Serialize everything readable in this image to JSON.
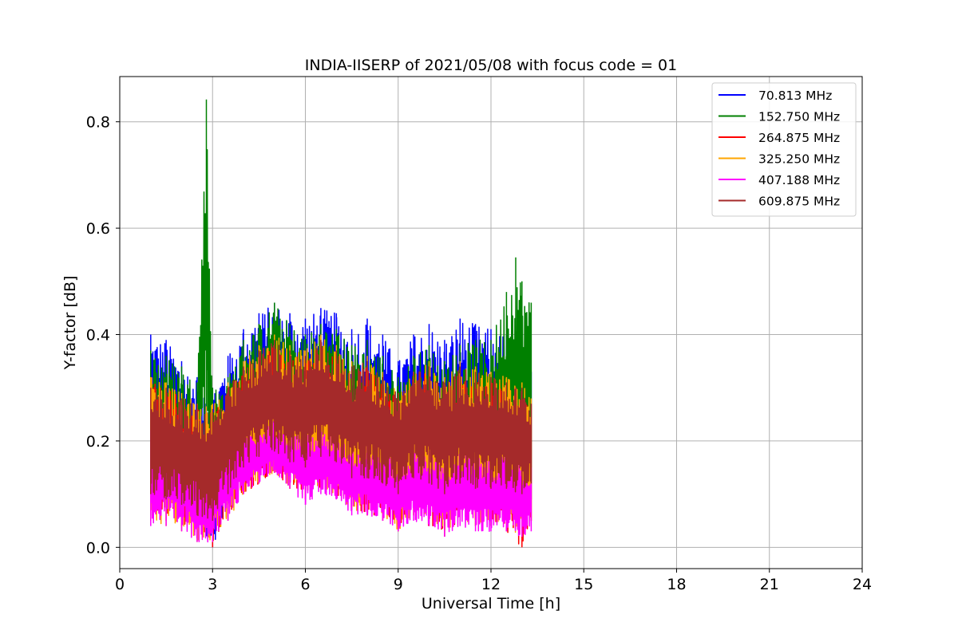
{
  "chart_data": {
    "type": "line",
    "title": "INDIA-IISERP of 2021/05/08 with focus code = 01",
    "xlabel": "Universal Time [h]",
    "ylabel": "Y-factor [dB]",
    "xlim": [
      0,
      24
    ],
    "ylim": [
      -0.04,
      0.885
    ],
    "xticks": [
      0,
      3,
      6,
      9,
      12,
      15,
      18,
      21,
      24
    ],
    "xtick_labels": [
      "0",
      "3",
      "6",
      "9",
      "12",
      "15",
      "18",
      "21",
      "24"
    ],
    "yticks": [
      0.0,
      0.2,
      0.4,
      0.6,
      0.8
    ],
    "ytick_labels": [
      "0.0",
      "0.2",
      "0.4",
      "0.6",
      "0.8"
    ],
    "grid": true,
    "legend_position": "top-right",
    "x_range_of_data": [
      1.0,
      13.3
    ],
    "series": [
      {
        "name": " 70.813 MHz",
        "color": "#0000ff",
        "x": [
          1.0,
          1.5,
          2.0,
          2.5,
          3.0,
          3.5,
          4.0,
          4.5,
          5.0,
          5.5,
          6.0,
          6.5,
          7.0,
          7.5,
          8.0,
          8.5,
          9.0,
          9.5,
          10.0,
          10.5,
          11.0,
          11.5,
          12.0,
          12.5,
          13.0,
          13.3
        ],
        "upper": [
          0.4,
          0.39,
          0.35,
          0.32,
          0.3,
          0.36,
          0.41,
          0.44,
          0.46,
          0.44,
          0.43,
          0.45,
          0.44,
          0.41,
          0.43,
          0.4,
          0.35,
          0.4,
          0.42,
          0.39,
          0.43,
          0.42,
          0.41,
          0.4,
          0.38,
          0.33
        ],
        "lower": [
          0.1,
          0.09,
          0.07,
          0.04,
          0.0,
          0.08,
          0.14,
          0.16,
          0.18,
          0.15,
          0.13,
          0.15,
          0.14,
          0.11,
          0.1,
          0.08,
          0.05,
          0.09,
          0.07,
          0.04,
          0.08,
          0.07,
          0.08,
          0.07,
          0.06,
          0.09
        ]
      },
      {
        "name": "152.750 MHz",
        "color": "#008000",
        "x": [
          1.0,
          1.5,
          2.0,
          2.5,
          2.8,
          3.0,
          3.5,
          4.0,
          4.5,
          5.0,
          5.5,
          6.0,
          6.5,
          7.0,
          7.5,
          8.0,
          8.5,
          9.0,
          9.5,
          10.0,
          10.5,
          11.0,
          11.5,
          12.0,
          12.5,
          12.8,
          13.0,
          13.3
        ],
        "upper": [
          0.37,
          0.36,
          0.34,
          0.31,
          0.842,
          0.3,
          0.32,
          0.39,
          0.42,
          0.46,
          0.42,
          0.4,
          0.42,
          0.41,
          0.38,
          0.39,
          0.36,
          0.32,
          0.36,
          0.38,
          0.35,
          0.38,
          0.39,
          0.39,
          0.48,
          0.545,
          0.5,
          0.46
        ],
        "lower": [
          0.12,
          0.11,
          0.09,
          0.05,
          0.2,
          0.03,
          0.09,
          0.15,
          0.17,
          0.19,
          0.16,
          0.14,
          0.16,
          0.15,
          0.12,
          0.11,
          0.09,
          0.06,
          0.1,
          0.08,
          0.05,
          0.09,
          0.08,
          0.09,
          0.08,
          0.1,
          0.12,
          0.15
        ]
      },
      {
        "name": "264.875 MHz",
        "color": "#ff0000",
        "x": [
          1.0,
          1.5,
          2.0,
          2.5,
          3.0,
          3.5,
          4.0,
          4.5,
          5.0,
          5.5,
          6.0,
          6.5,
          7.0,
          7.5,
          8.0,
          8.5,
          9.0,
          9.5,
          10.0,
          10.5,
          11.0,
          11.5,
          12.0,
          12.5,
          13.0,
          13.3
        ],
        "upper": [
          0.31,
          0.3,
          0.28,
          0.26,
          0.25,
          0.29,
          0.33,
          0.36,
          0.38,
          0.36,
          0.35,
          0.37,
          0.36,
          0.33,
          0.34,
          0.32,
          0.28,
          0.32,
          0.33,
          0.3,
          0.33,
          0.32,
          0.31,
          0.31,
          0.3,
          0.27
        ],
        "lower": [
          0.06,
          0.05,
          0.04,
          0.02,
          0.0,
          0.05,
          0.1,
          0.12,
          0.14,
          0.11,
          0.09,
          0.11,
          0.1,
          0.07,
          0.06,
          0.05,
          0.03,
          0.06,
          0.04,
          0.02,
          0.05,
          0.04,
          0.04,
          0.03,
          0.0,
          0.05
        ]
      },
      {
        "name": "325.250 MHz",
        "color": "#ffa500",
        "x": [
          1.0,
          1.5,
          2.0,
          2.5,
          3.0,
          3.5,
          4.0,
          4.5,
          5.0,
          5.5,
          6.0,
          6.5,
          7.0,
          7.5,
          8.0,
          8.5,
          9.0,
          9.5,
          10.0,
          10.5,
          11.0,
          11.5,
          12.0,
          12.5,
          13.0,
          13.3
        ],
        "upper": [
          0.32,
          0.31,
          0.29,
          0.27,
          0.27,
          0.31,
          0.35,
          0.38,
          0.4,
          0.38,
          0.37,
          0.4,
          0.38,
          0.35,
          0.36,
          0.33,
          0.29,
          0.33,
          0.35,
          0.32,
          0.35,
          0.34,
          0.33,
          0.32,
          0.31,
          0.28
        ],
        "lower": [
          0.05,
          0.04,
          0.03,
          0.01,
          0.01,
          0.05,
          0.1,
          0.12,
          0.14,
          0.11,
          0.1,
          0.11,
          0.1,
          0.07,
          0.06,
          0.05,
          0.03,
          0.06,
          0.05,
          0.03,
          0.05,
          0.04,
          0.05,
          0.04,
          0.02,
          0.05
        ]
      },
      {
        "name": "407.188 MHz",
        "color": "#ff00ff",
        "x": [
          1.0,
          1.5,
          2.0,
          2.5,
          3.0,
          3.5,
          4.0,
          4.5,
          5.0,
          5.5,
          6.0,
          6.5,
          7.0,
          7.5,
          8.0,
          8.5,
          9.0,
          9.5,
          10.0,
          10.5,
          11.0,
          11.5,
          12.0,
          12.5,
          13.0,
          13.3
        ],
        "upper": [
          0.22,
          0.21,
          0.19,
          0.18,
          0.17,
          0.19,
          0.21,
          0.22,
          0.24,
          0.22,
          0.21,
          0.22,
          0.21,
          0.19,
          0.19,
          0.18,
          0.16,
          0.18,
          0.18,
          0.16,
          0.18,
          0.17,
          0.17,
          0.17,
          0.16,
          0.15
        ],
        "lower": [
          0.04,
          0.04,
          0.03,
          0.01,
          0.01,
          0.05,
          0.1,
          0.12,
          0.14,
          0.11,
          0.08,
          0.1,
          0.09,
          0.06,
          0.06,
          0.05,
          0.03,
          0.05,
          0.04,
          0.02,
          0.04,
          0.03,
          0.03,
          0.03,
          0.02,
          0.03
        ]
      },
      {
        "name": "609.875 MHz",
        "color": "#a52a2a",
        "x": [
          1.0,
          1.5,
          2.0,
          2.5,
          3.0,
          3.5,
          4.0,
          4.5,
          5.0,
          5.5,
          6.0,
          6.5,
          7.0,
          7.5,
          8.0,
          8.5,
          9.0,
          9.5,
          10.0,
          10.5,
          11.0,
          11.5,
          12.0,
          12.5,
          13.0,
          13.3
        ],
        "upper": [
          0.3,
          0.3,
          0.28,
          0.27,
          0.26,
          0.3,
          0.34,
          0.37,
          0.39,
          0.37,
          0.36,
          0.39,
          0.37,
          0.34,
          0.35,
          0.32,
          0.29,
          0.33,
          0.34,
          0.31,
          0.34,
          0.33,
          0.32,
          0.31,
          0.3,
          0.27
        ],
        "lower": [
          0.1,
          0.09,
          0.08,
          0.06,
          0.05,
          0.1,
          0.15,
          0.17,
          0.18,
          0.16,
          0.15,
          0.17,
          0.16,
          0.13,
          0.13,
          0.12,
          0.1,
          0.13,
          0.12,
          0.1,
          0.12,
          0.11,
          0.11,
          0.11,
          0.1,
          0.12
        ]
      }
    ]
  }
}
